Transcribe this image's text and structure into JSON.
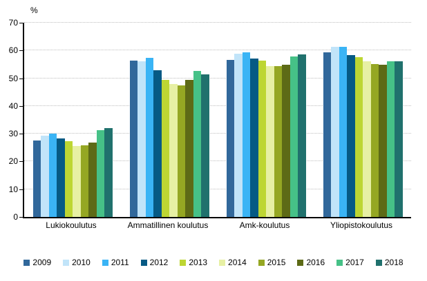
{
  "chart_data": {
    "type": "bar",
    "title": "",
    "ylabel": "%",
    "xlabel": "",
    "ylim": [
      0,
      70
    ],
    "yticks": [
      0,
      10,
      20,
      30,
      40,
      50,
      60,
      70
    ],
    "grid": "horizontal-dotted",
    "legend_position": "bottom",
    "categories": [
      "Lukiokoulutus",
      "Ammatillinen koulutus",
      "Amk-koulutus",
      "Yliopistokoulutus"
    ],
    "series": [
      {
        "name": "2009",
        "color": "#31689b",
        "values": [
          27.5,
          56.4,
          56.7,
          59.4
        ]
      },
      {
        "name": "2010",
        "color": "#c1e4f9",
        "values": [
          29.2,
          56.2,
          58.9,
          61.2
        ]
      },
      {
        "name": "2011",
        "color": "#3ab4f5",
        "values": [
          30.1,
          57.3,
          59.3,
          61.4
        ]
      },
      {
        "name": "2012",
        "color": "#065a84",
        "values": [
          28.2,
          53.0,
          57.1,
          58.3
        ]
      },
      {
        "name": "2013",
        "color": "#bdd633",
        "values": [
          27.2,
          49.4,
          56.4,
          57.7
        ]
      },
      {
        "name": "2014",
        "color": "#e7f0a4",
        "values": [
          25.6,
          48.0,
          54.3,
          56.2
        ]
      },
      {
        "name": "2015",
        "color": "#95a723",
        "values": [
          25.8,
          47.3,
          54.4,
          55.1
        ]
      },
      {
        "name": "2016",
        "color": "#5d6a16",
        "values": [
          26.7,
          49.5,
          54.9,
          54.9
        ]
      },
      {
        "name": "2017",
        "color": "#46c187",
        "values": [
          31.4,
          52.7,
          57.8,
          56.1
        ]
      },
      {
        "name": "2018",
        "color": "#20716d",
        "values": [
          32.0,
          51.3,
          58.5,
          56.2
        ]
      }
    ],
    "axis_color": "#000000",
    "gridline_color": "#bdbdbd"
  }
}
